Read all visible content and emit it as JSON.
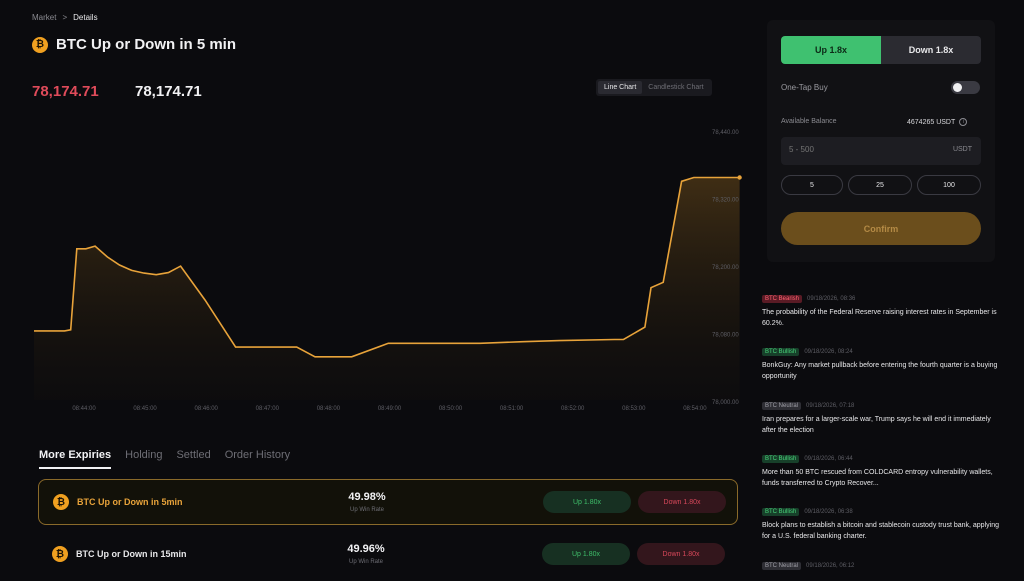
{
  "breadcrumb": {
    "parent": "Market",
    "sep": ">",
    "current": "Details"
  },
  "header": {
    "coin_symbol": "₿",
    "title": "BTC Up or Down in 5 min"
  },
  "prices": {
    "red": "78,174.71",
    "white": "78,174.71"
  },
  "chart_toggle": {
    "line": "Line Chart",
    "candle": "Candlestick Chart"
  },
  "chart_data": {
    "type": "area",
    "line_color": "#e8a33a",
    "y_ticks": [
      "78,440.00",
      "78,320.00",
      "78,200.00",
      "78,080.00",
      "78,000.00"
    ],
    "ylim": [
      77960,
      78460
    ],
    "x_ticks": [
      "08:44:00",
      "08:45:00",
      "08:46:00",
      "08:47:00",
      "08:48:00",
      "08:49:00",
      "08:50:00",
      "08:51:00",
      "08:52:00",
      "08:53:00",
      "08:54:00",
      "08:55:00"
    ],
    "x": [
      0,
      0.2,
      0.5,
      0.6,
      0.7,
      0.85,
      1.0,
      1.2,
      1.4,
      1.6,
      1.8,
      2.0,
      2.2,
      2.4,
      2.8,
      3.3,
      3.6,
      3.8,
      4.3,
      4.6,
      5.2,
      5.8,
      6.3,
      6.8,
      7.3,
      8.0,
      8.6,
      9.5,
      9.65,
      10.0,
      10.1,
      10.3,
      10.6,
      10.8,
      11.3,
      11.55
    ],
    "y": [
      78088,
      78088,
      78088,
      78090,
      78240,
      78240,
      78245,
      78225,
      78210,
      78200,
      78195,
      78192,
      78196,
      78208,
      78145,
      78058,
      78058,
      78058,
      78058,
      78040,
      78040,
      78065,
      78065,
      78065,
      78065,
      78068,
      78070,
      78072,
      78072,
      78095,
      78168,
      78178,
      78365,
      78372,
      78372,
      78372
    ]
  },
  "tabs": [
    "More Expiries",
    "Holding",
    "Settled",
    "Order History"
  ],
  "expiries": [
    {
      "name": "BTC Up or Down in 5min",
      "pct": "49.98%",
      "rate_label": "Up Win Rate",
      "up": "Up 1.80x",
      "down": "Down 1.80x"
    },
    {
      "name": "BTC Up or Down in 15min",
      "pct": "49.96%",
      "rate_label": "Up Win Rate",
      "up": "Up 1.80x",
      "down": "Down 1.80x"
    }
  ],
  "panel": {
    "up_label": "Up 1.8x",
    "down_label": "Down 1.8x",
    "one_tap": "One-Tap Buy",
    "avail_label": "Available Balance",
    "avail_value": "4674265 USDT",
    "amount_placeholder": "5 - 500",
    "amount_unit": "USDT",
    "quick": [
      "5",
      "25",
      "100"
    ],
    "confirm": "Confirm"
  },
  "news": [
    {
      "tag": "BTC Bearish",
      "kind": "bearish",
      "time": "09/18/2026, 08:36",
      "text": "The probability of the Federal Reserve raising interest rates in September is 60.2%."
    },
    {
      "tag": "BTC Bullish",
      "kind": "bullish",
      "time": "09/18/2026, 08:24",
      "text": "BonkGuy: Any market pullback before entering the fourth quarter is a buying opportunity"
    },
    {
      "tag": "BTC Neutral",
      "kind": "neutral",
      "time": "09/18/2026, 07:18",
      "text": "Iran prepares for a larger-scale war, Trump says he will end it immediately after the election"
    },
    {
      "tag": "BTC Bullish",
      "kind": "bullish",
      "time": "09/18/2026, 06:44",
      "text": "More than 50 BTC rescued from COLDCARD entropy vulnerability wallets, funds transferred to Crypto Recover..."
    },
    {
      "tag": "BTC Bullish",
      "kind": "bullish",
      "time": "09/18/2026, 06:38",
      "text": "Block plans to establish a bitcoin and stablecoin custody trust bank, applying for a U.S. federal banking charter."
    },
    {
      "tag": "BTC Neutral",
      "kind": "neutral",
      "time": "09/18/2026, 06:12",
      "text": ""
    }
  ]
}
